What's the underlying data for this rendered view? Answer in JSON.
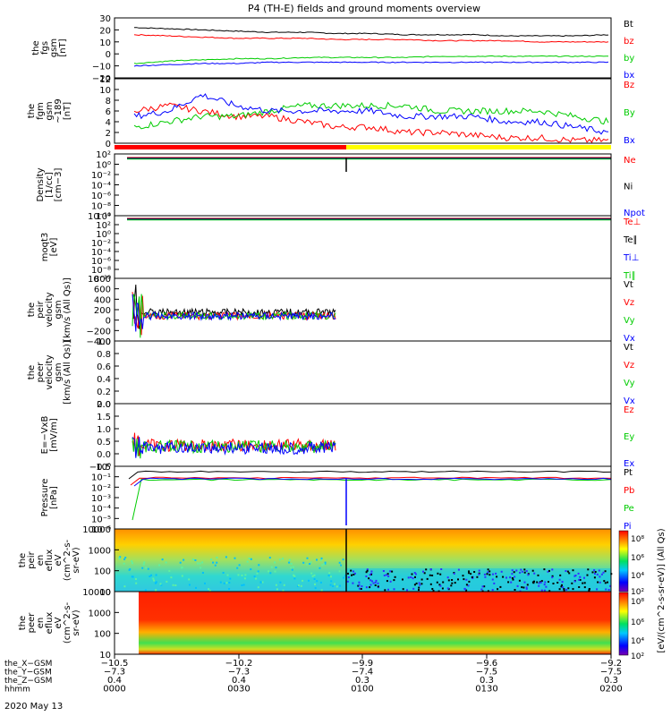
{
  "title": "P4 (TH-E) fields and ground moments overview",
  "colors": {
    "black": "#000000",
    "red": "#ff0000",
    "green": "#00cc00",
    "blue": "#0000ff",
    "yellow": "#ffff00"
  },
  "chart_data": [
    {
      "type": "line",
      "ylabel": [
        "the",
        "fgs",
        "gsm",
        "[nT]"
      ],
      "yticks": [
        "30",
        "20",
        "10",
        "0",
        "−10",
        "−20"
      ],
      "series": [
        {
          "name": "Bt",
          "color": "black",
          "values": [
            22,
            21,
            20,
            19,
            18,
            18,
            17,
            17,
            16,
            16,
            16,
            15,
            15,
            15,
            16
          ]
        },
        {
          "name": "bz",
          "color": "red",
          "values": [
            16,
            15,
            14,
            13,
            13,
            13,
            12,
            12,
            12,
            11,
            11,
            11,
            10,
            10,
            10
          ]
        },
        {
          "name": "by",
          "color": "green",
          "values": [
            -8,
            -6,
            -5,
            -4,
            -4,
            -3,
            -3,
            -3,
            -3,
            -2,
            -2,
            -2,
            -2,
            -2,
            -2
          ]
        },
        {
          "name": "bx",
          "color": "blue",
          "values": [
            -10,
            -9,
            -8,
            -8,
            -7,
            -7,
            -7,
            -7,
            -7,
            -7,
            -7,
            -7,
            -7,
            -7,
            -7
          ]
        }
      ]
    },
    {
      "type": "line",
      "ylabel": [
        "the",
        "fgm",
        "gsm",
        "~189",
        "[nT]"
      ],
      "yticks": [
        "12",
        "10",
        "8",
        "6",
        "4",
        "2",
        "0"
      ],
      "series": [
        {
          "name": "Bz",
          "color": "red",
          "values": [
            6,
            7,
            6,
            5,
            5,
            4,
            3,
            3,
            2,
            2,
            1.5,
            1,
            1,
            0.5,
            0.5
          ]
        },
        {
          "name": "By",
          "color": "green",
          "values": [
            3,
            4,
            5,
            5,
            6,
            7,
            7,
            7,
            7,
            6,
            6,
            6,
            6,
            5,
            4
          ]
        },
        {
          "name": "Bx",
          "color": "blue",
          "values": [
            5,
            6,
            9,
            7,
            6,
            6,
            6,
            6,
            5,
            5,
            5,
            4,
            4,
            3,
            2
          ]
        }
      ]
    },
    {
      "type": "line",
      "ylabel": [
        "Density",
        "[1/cc]",
        "[cm−3]"
      ],
      "yticks": [
        "10²",
        "10⁰",
        "10⁻²",
        "10⁻⁴",
        "10⁻⁶",
        "10⁻⁸",
        "10⁻¹⁰"
      ],
      "series": [
        {
          "name": "Ne",
          "color": "red"
        },
        {
          "name": "Ni",
          "color": "black"
        },
        {
          "name": "Npot",
          "color": "blue"
        }
      ]
    },
    {
      "type": "line",
      "ylabel": [
        "moqt3",
        "[eV]"
      ],
      "yticks": [
        "10⁴",
        "10²",
        "10⁰",
        "10⁻²",
        "10⁻⁴",
        "10⁻⁶",
        "10⁻⁸",
        "10⁻¹⁰"
      ],
      "series": [
        {
          "name": "Te⊥",
          "color": "red"
        },
        {
          "name": "Te∥",
          "color": "black"
        },
        {
          "name": "Ti⊥",
          "color": "blue"
        },
        {
          "name": "Ti∥",
          "color": "green"
        }
      ]
    },
    {
      "type": "line",
      "ylabel": [
        "the",
        "peir",
        "velocity",
        "gsm",
        "[km/s (All Qs)]"
      ],
      "yticks": [
        "800",
        "600",
        "400",
        "200",
        "0",
        "−200",
        "−400"
      ],
      "series": [
        {
          "name": "Vt",
          "color": "black"
        },
        {
          "name": "Vz",
          "color": "red"
        },
        {
          "name": "Vy",
          "color": "green"
        },
        {
          "name": "Vx",
          "color": "blue"
        }
      ]
    },
    {
      "type": "line",
      "ylabel": [
        "the",
        "peer",
        "velocity",
        "gsm",
        "[km/s (All Qs)]"
      ],
      "yticks": [
        "1.0",
        "0.8",
        "0.6",
        "0.4",
        "0.2",
        "0.0"
      ],
      "series": [
        {
          "name": "Vt",
          "color": "black"
        },
        {
          "name": "Vz",
          "color": "red"
        },
        {
          "name": "Vy",
          "color": "green"
        },
        {
          "name": "Vx",
          "color": "blue"
        }
      ]
    },
    {
      "type": "line",
      "ylabel": [
        "E=−VxB",
        "[mV/m]"
      ],
      "yticks": [
        "2.0",
        "1.5",
        "1.0",
        "0.5",
        "0.0",
        "−0.5"
      ],
      "series": [
        {
          "name": "Ez",
          "color": "red"
        },
        {
          "name": "Ey",
          "color": "green"
        },
        {
          "name": "Ex",
          "color": "blue"
        }
      ]
    },
    {
      "type": "line",
      "ylabel": [
        "Pressure",
        "[nPa]"
      ],
      "yticks": [
        "10⁰",
        "10⁻¹",
        "10⁻²",
        "10⁻³",
        "10⁻⁴",
        "10⁻⁵",
        "10⁻⁶"
      ],
      "series": [
        {
          "name": "Pt",
          "color": "black"
        },
        {
          "name": "Pb",
          "color": "red"
        },
        {
          "name": "Pe",
          "color": "green"
        },
        {
          "name": "Pi",
          "color": "blue"
        }
      ]
    },
    {
      "type": "heatmap",
      "ylabel": [
        "the",
        "peir",
        "en",
        "eflux",
        "eV",
        "(cm^2-s-",
        "sr-eV)"
      ],
      "yticks": [
        "10000",
        "1000",
        "100",
        "10"
      ]
    },
    {
      "type": "heatmap",
      "ylabel": [
        "the",
        "peer",
        "en",
        "eflux",
        "eV",
        "(cm^2-s-",
        "sr-eV)"
      ],
      "yticks": [
        "10000",
        "1000",
        "100",
        "10"
      ]
    }
  ],
  "colorbar": {
    "label": "[eV/(cm^2-s-sr-eV)] (All Qs)",
    "ticks": [
      "10⁸",
      "10⁶",
      "10⁴",
      "10²",
      "10⁸",
      "10⁶",
      "10⁴",
      "10²"
    ]
  },
  "xaxis": {
    "rows": [
      {
        "label": "the_X−GSM",
        "values": [
          "−10.5",
          "−10.2",
          "−9.9",
          "−9.6",
          "−9.2"
        ]
      },
      {
        "label": "the_Y−GSM",
        "values": [
          "−7.3",
          "−7.3",
          "−7.4",
          "−7.5",
          "−7.5"
        ]
      },
      {
        "label": "the_Z−GSM",
        "values": [
          "0.4",
          "0.4",
          "0.3",
          "0.3",
          "0.3"
        ]
      },
      {
        "label": "hhmm",
        "values": [
          "0000",
          "0030",
          "0100",
          "0130",
          "0200"
        ]
      }
    ],
    "date": "2020 May 13"
  }
}
